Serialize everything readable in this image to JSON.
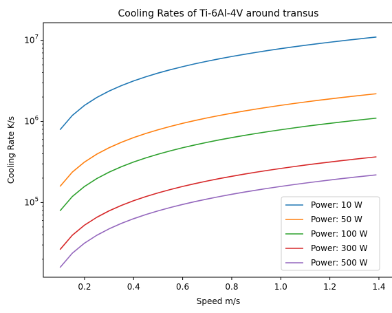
{
  "chart_data": {
    "type": "line",
    "title": "Cooling Rates of Ti-6Al-4V around transus",
    "xlabel": "Speed m/s",
    "ylabel": "Cooling Rate K/s",
    "xscale": "linear",
    "yscale": "log",
    "xlim": [
      0.032,
      1.459
    ],
    "ylim": [
      12000,
      16500000
    ],
    "x_ticks": [
      {
        "value": 0.2,
        "label": "0.2"
      },
      {
        "value": 0.4,
        "label": "0.4"
      },
      {
        "value": 0.6,
        "label": "0.6"
      },
      {
        "value": 0.8,
        "label": "0.8"
      },
      {
        "value": 1.0,
        "label": "1.0"
      },
      {
        "value": 1.2,
        "label": "1.2"
      },
      {
        "value": 1.4,
        "label": "1.4"
      }
    ],
    "y_ticks": [
      {
        "value": 100000,
        "base": "10",
        "exp": "5"
      },
      {
        "value": 1000000,
        "base": "10",
        "exp": "6"
      },
      {
        "value": 10000000,
        "base": "10",
        "exp": "7"
      }
    ],
    "legend_position": "lower right",
    "grid": false,
    "x": [
      0.1,
      0.15,
      0.2,
      0.25,
      0.3,
      0.35,
      0.4,
      0.45,
      0.5,
      0.55,
      0.6,
      0.65,
      0.7,
      0.75,
      0.8,
      0.85,
      0.9,
      0.95,
      1.0,
      1.05,
      1.1,
      1.15,
      1.2,
      1.25,
      1.3,
      1.35,
      1.39
    ],
    "series": [
      {
        "name": "Power: 10 W",
        "color": "#1f77b4",
        "values": [
          790000,
          1185000,
          1580000,
          1975000,
          2370000,
          2765000,
          3160000,
          3555000,
          3950000,
          4345000,
          4740000,
          5135000,
          5530000,
          5925000,
          6320000,
          6715000,
          7110000,
          7505000,
          7900000,
          8295000,
          8690000,
          9085000,
          9480000,
          9875000,
          10270000,
          10665000,
          10981000
        ]
      },
      {
        "name": "Power: 50 W",
        "color": "#ff7f0e",
        "values": [
          158000,
          237000,
          316000,
          395000,
          474000,
          553000,
          632000,
          711000,
          790000,
          869000,
          948000,
          1027000,
          1106000,
          1185000,
          1264000,
          1343000,
          1422000,
          1501000,
          1580000,
          1659000,
          1738000,
          1817000,
          1896000,
          1975000,
          2054000,
          2133000,
          2196000
        ]
      },
      {
        "name": "Power: 100 W",
        "color": "#2ca02c",
        "values": [
          79000,
          118500,
          158000,
          197500,
          237000,
          276500,
          316000,
          355500,
          395000,
          434500,
          474000,
          513500,
          553000,
          592500,
          632000,
          671500,
          711000,
          750500,
          790000,
          829500,
          869000,
          908500,
          948000,
          987500,
          1027000,
          1066500,
          1098000
        ]
      },
      {
        "name": "Power: 300 W",
        "color": "#d62728",
        "values": [
          26300,
          39500,
          52700,
          65800,
          79000,
          92200,
          105300,
          118500,
          131700,
          144800,
          158000,
          171200,
          184300,
          197500,
          210700,
          223800,
          237000,
          250200,
          263300,
          276500,
          289700,
          302800,
          316000,
          329200,
          342300,
          355500,
          366000
        ]
      },
      {
        "name": "Power: 500 W",
        "color": "#9467bd",
        "values": [
          15800,
          23700,
          31600,
          39500,
          47400,
          55300,
          63200,
          71100,
          79000,
          86900,
          94800,
          102700,
          110600,
          118500,
          126400,
          134300,
          142200,
          150100,
          158000,
          165900,
          173800,
          181700,
          189600,
          197500,
          205400,
          213300,
          219600
        ]
      }
    ]
  }
}
